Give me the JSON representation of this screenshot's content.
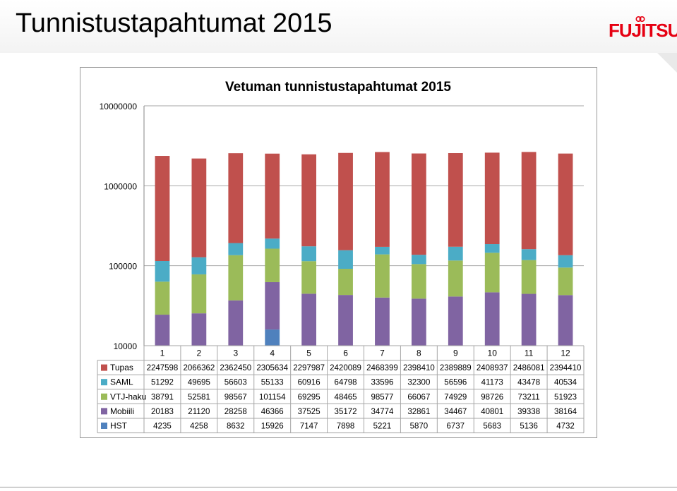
{
  "slide": {
    "title": "Tunnistustapahtumat 2015",
    "logo_text": "FUJITSU"
  },
  "colors": {
    "Tupas": "#C0504D",
    "SAML": "#4BACC6",
    "VTJ-haku": "#9BBB59",
    "Mobiili": "#8064A2",
    "HST": "#4F81BD"
  },
  "chart_data": {
    "type": "bar",
    "stacked": true,
    "log_scale": true,
    "title": "Vetuman tunnistustapahtumat 2015",
    "y_ticks": [
      "10000000",
      "1000000",
      "100000",
      "10000"
    ],
    "ylim": [
      10000,
      10000000
    ],
    "grid": true,
    "legend": "table-below",
    "categories": [
      "1",
      "2",
      "3",
      "4",
      "5",
      "6",
      "7",
      "8",
      "9",
      "10",
      "11",
      "12"
    ],
    "series": [
      {
        "name": "Tupas",
        "values": [
          2247598,
          2066362,
          2362450,
          2305634,
          2297987,
          2420089,
          2468399,
          2398410,
          2389889,
          2408937,
          2486081,
          2394410
        ]
      },
      {
        "name": "SAML",
        "values": [
          51292,
          49695,
          56603,
          55133,
          60916,
          64798,
          33596,
          32300,
          56596,
          41173,
          43478,
          40534
        ]
      },
      {
        "name": "VTJ-haku",
        "values": [
          38791,
          52581,
          98567,
          101154,
          69295,
          48465,
          98577,
          66067,
          74929,
          98726,
          73211,
          51923
        ]
      },
      {
        "name": "Mobiili",
        "values": [
          20183,
          21120,
          28258,
          46366,
          37525,
          35172,
          34774,
          32861,
          34467,
          40801,
          39338,
          38164
        ]
      },
      {
        "name": "HST",
        "values": [
          4235,
          4258,
          8632,
          15926,
          7147,
          7898,
          5221,
          5870,
          6737,
          5683,
          5136,
          4732
        ]
      }
    ]
  }
}
